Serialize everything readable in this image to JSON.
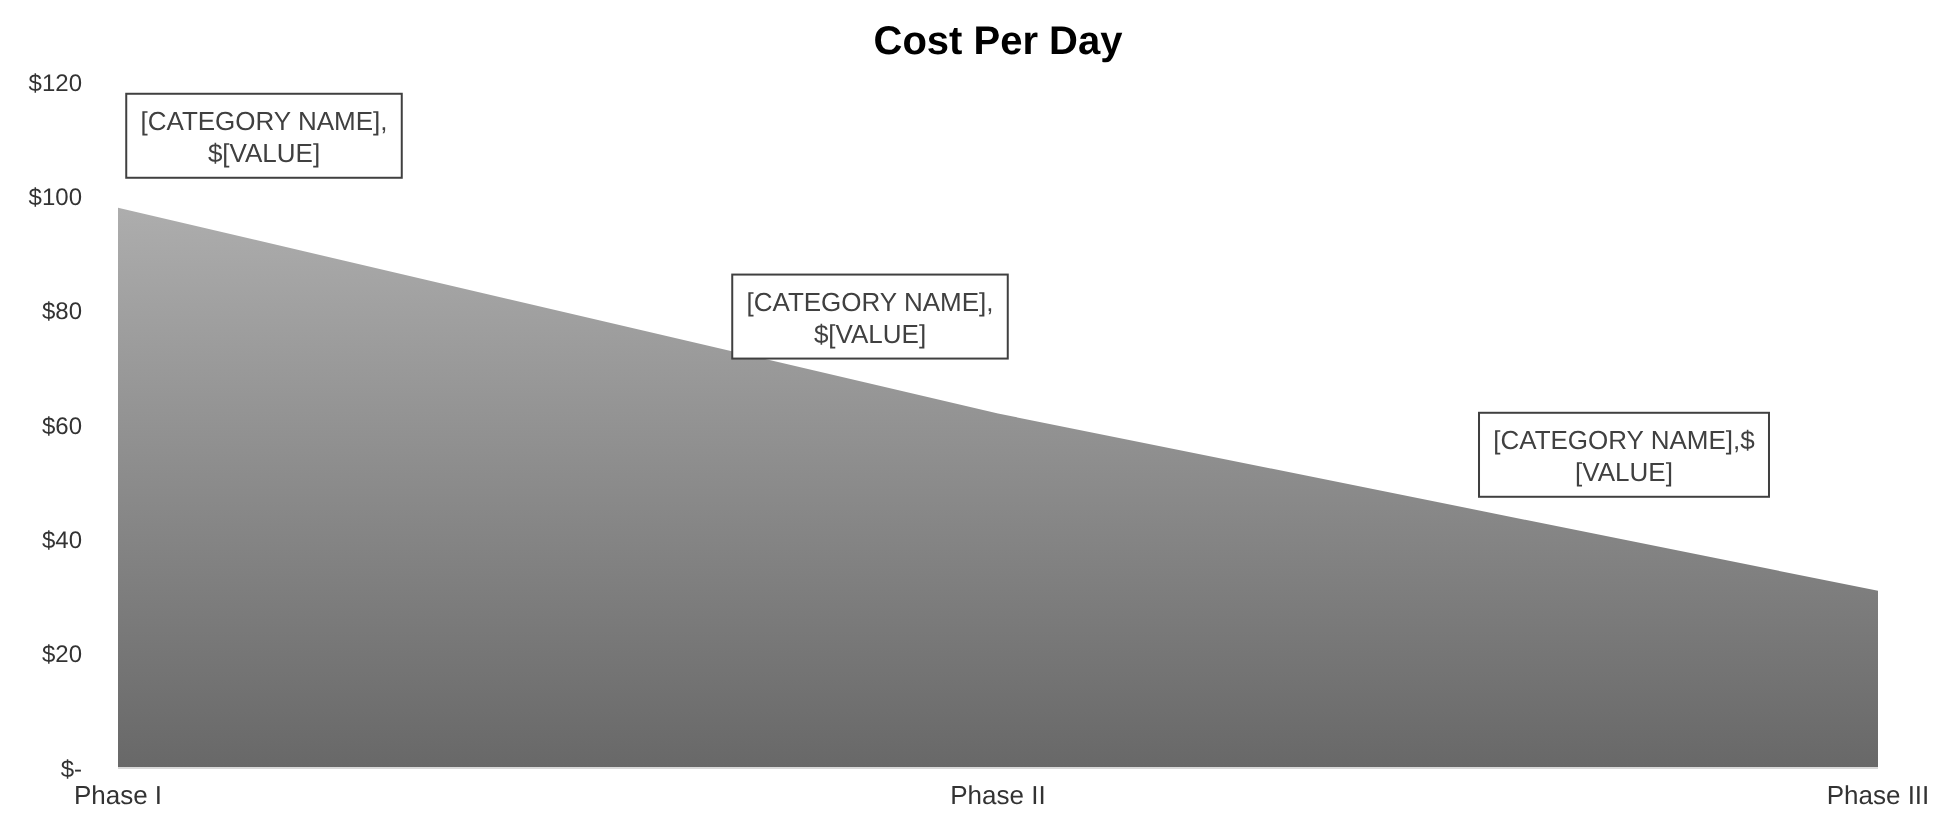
{
  "chart_data": {
    "type": "area",
    "title": "Cost Per Day",
    "categories": [
      "Phase I",
      "Phase II",
      "Phase III"
    ],
    "values": [
      98,
      62,
      31
    ],
    "color": "#8a8a8a",
    "ylim": [
      0,
      120
    ],
    "yticks": [
      {
        "value": 0,
        "label": "$-"
      },
      {
        "value": 20,
        "label": "$20"
      },
      {
        "value": 40,
        "label": "$40"
      },
      {
        "value": 60,
        "label": "$60"
      },
      {
        "value": 80,
        "label": "$80"
      },
      {
        "value": 100,
        "label": "$100"
      },
      {
        "value": 120,
        "label": "$120"
      }
    ],
    "annotations": [
      "[CATEGORY NAME], $[VALUE]",
      "[CATEGORY NAME], $[VALUE]",
      "[CATEGORY NAME],$ [VALUE]"
    ]
  }
}
